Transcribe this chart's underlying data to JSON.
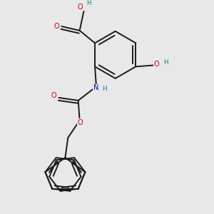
{
  "background_color": "#e8e8e8",
  "bond_color": "#1a1a1a",
  "oxygen_color": "#cc0000",
  "nitrogen_color": "#0000cc",
  "hydrogen_color": "#008080",
  "line_width": 1.4,
  "figsize": [
    3.0,
    3.0
  ],
  "dpi": 100,
  "font_size_atoms": 7.0,
  "font_size_h": 6.2,
  "xlim": [
    -2.5,
    2.5
  ],
  "ylim": [
    -4.2,
    3.2
  ]
}
